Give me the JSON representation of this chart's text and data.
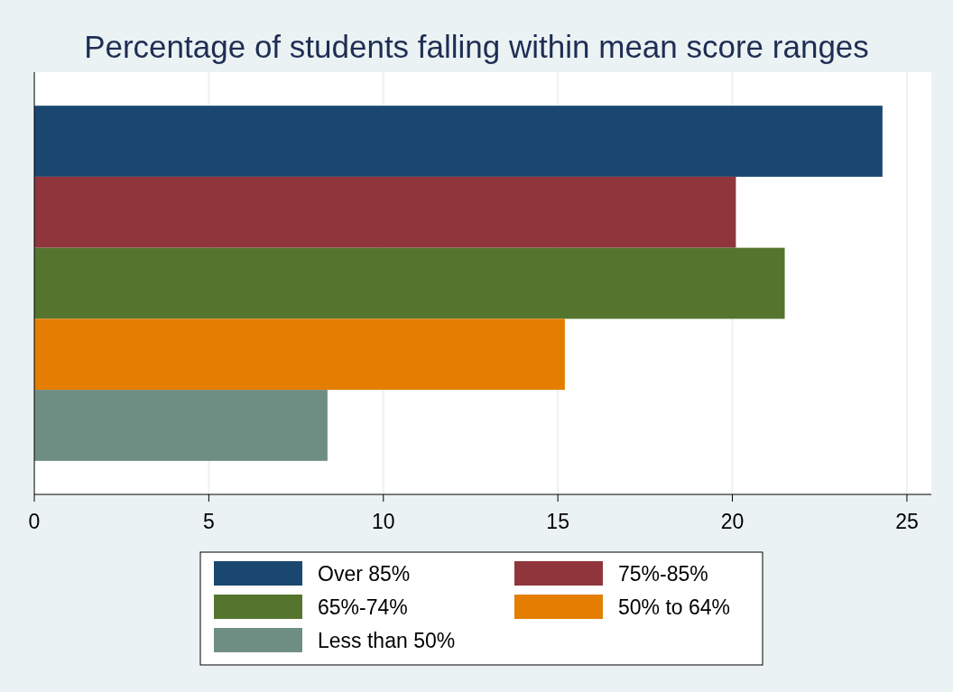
{
  "chart_data": {
    "type": "bar",
    "orientation": "horizontal",
    "title": "Percentage of students falling within mean score ranges",
    "categories": [
      null
    ],
    "series": [
      {
        "name": "Over 85%",
        "color": "#1a476f",
        "values": [
          24.3
        ]
      },
      {
        "name": "75%-85%",
        "color": "#90353b",
        "values": [
          20.1
        ]
      },
      {
        "name": "65%-74%",
        "color": "#55752f",
        "values": [
          21.5
        ]
      },
      {
        "name": "50% to 64%",
        "color": "#e37e00",
        "values": [
          15.2
        ]
      },
      {
        "name": "Less than 50%",
        "color": "#6e8e84",
        "values": [
          8.4
        ]
      }
    ],
    "xlim": [
      0,
      25.7
    ],
    "xticks": [
      0,
      5,
      10,
      15,
      20,
      25
    ],
    "grid": "x",
    "legend": "bottom",
    "tick_labels": "x"
  }
}
